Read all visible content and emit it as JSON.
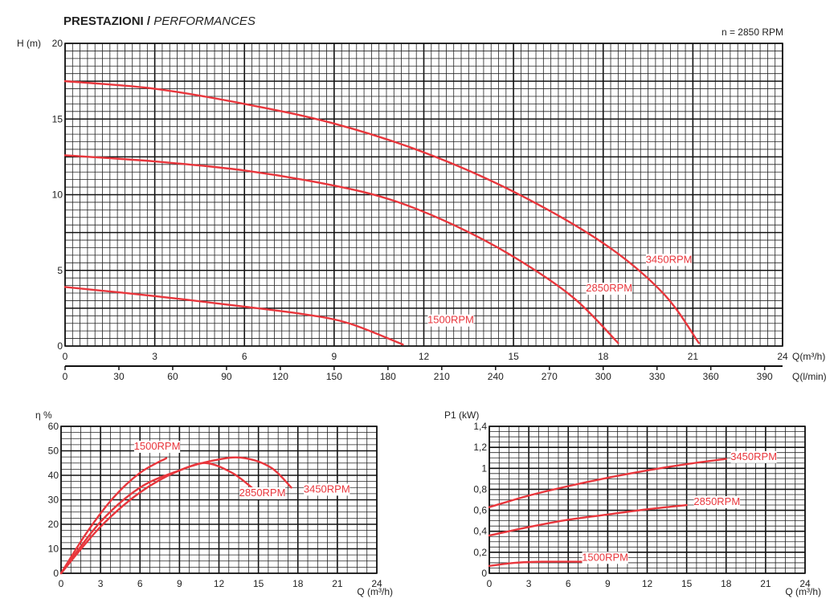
{
  "header": {
    "title_bold": "PRESTAZIONI",
    "separator": "/",
    "title_italic": "PERFORMANCES",
    "speed": "n = 2850 RPM"
  },
  "colors": {
    "curve": "#e8363c",
    "grid_minor": "#222222",
    "grid_major": "#111111",
    "background": "#ffffff"
  },
  "chart_data": [
    {
      "id": "head",
      "type": "line",
      "ylabel": "H (m)",
      "xlabel": "Q(m³/h)",
      "xlabel2": "Q(l/min)",
      "xlim": [
        0,
        24
      ],
      "ylim": [
        0,
        20
      ],
      "xticks": [
        0,
        3,
        6,
        9,
        12,
        15,
        18,
        21,
        24
      ],
      "yticks": [
        0,
        5,
        10,
        15,
        20
      ],
      "x2ticks": [
        0,
        30,
        60,
        90,
        120,
        150,
        180,
        210,
        240,
        270,
        300,
        330,
        360,
        390
      ],
      "grid": true,
      "series": [
        {
          "name": "3450RPM",
          "label": "3450RPM",
          "x": [
            0,
            3,
            6,
            9,
            12,
            15,
            18,
            20,
            21.2
          ],
          "y": [
            17.5,
            17.0,
            16.0,
            14.7,
            12.8,
            10.2,
            6.8,
            3.5,
            0.2
          ]
        },
        {
          "name": "2850RPM",
          "label": "2850RPM",
          "x": [
            0,
            3,
            6,
            9,
            11,
            13,
            15,
            17,
            18.5
          ],
          "y": [
            12.6,
            12.2,
            11.6,
            10.6,
            9.6,
            8.0,
            5.9,
            3.2,
            0.2
          ]
        },
        {
          "name": "1500RPM",
          "label": "1500RPM",
          "x": [
            0,
            3,
            6,
            8,
            9.5,
            11.3
          ],
          "y": [
            3.9,
            3.3,
            2.6,
            2.1,
            1.5,
            0.1
          ]
        }
      ]
    },
    {
      "id": "efficiency",
      "type": "line",
      "ylabel": "η %",
      "xlabel": "Q (m³/h)",
      "xlim": [
        0,
        24
      ],
      "ylim": [
        0,
        60
      ],
      "xticks": [
        0,
        3,
        6,
        9,
        12,
        15,
        18,
        21,
        24
      ],
      "yticks": [
        0,
        10,
        20,
        30,
        40,
        50,
        60
      ],
      "grid": true,
      "series": [
        {
          "name": "1500RPM",
          "label": "1500RPM",
          "x": [
            0,
            2,
            4,
            6,
            8
          ],
          "y": [
            0,
            17,
            31,
            41,
            47
          ]
        },
        {
          "name": "2850RPM",
          "label": "2850RPM",
          "x": [
            0,
            3,
            6,
            9,
            11,
            13,
            14.5
          ],
          "y": [
            0,
            21,
            35,
            42,
            45,
            41,
            35
          ]
        },
        {
          "name": "3450RPM",
          "label": "3450RPM",
          "x": [
            0,
            3,
            6,
            9,
            12,
            14,
            16,
            17.5
          ],
          "y": [
            0,
            19,
            33,
            42,
            46.5,
            47,
            43,
            35
          ]
        }
      ]
    },
    {
      "id": "power",
      "type": "line",
      "ylabel": "P1  (kW)",
      "xlabel": "Q (m³/h)",
      "xlim": [
        0,
        24
      ],
      "ylim": [
        0,
        1.4
      ],
      "xticks": [
        0,
        3,
        6,
        9,
        12,
        15,
        18,
        21,
        24
      ],
      "yticks": [
        "0",
        "0,2",
        "0,4",
        "0,6",
        "0,8",
        "1",
        "1,2",
        "1,4"
      ],
      "grid": true,
      "series": [
        {
          "name": "3450RPM",
          "label": "3450RPM",
          "x": [
            0,
            3,
            6,
            9,
            12,
            15,
            18
          ],
          "y": [
            0.63,
            0.74,
            0.83,
            0.91,
            0.98,
            1.04,
            1.09
          ]
        },
        {
          "name": "2850RPM",
          "label": "2850RPM",
          "x": [
            0,
            3,
            6,
            9,
            12,
            15
          ],
          "y": [
            0.36,
            0.44,
            0.51,
            0.56,
            0.61,
            0.65
          ]
        },
        {
          "name": "1500RPM",
          "label": "1500RPM",
          "x": [
            0,
            2,
            4,
            7
          ],
          "y": [
            0.07,
            0.1,
            0.11,
            0.11
          ]
        }
      ]
    }
  ]
}
